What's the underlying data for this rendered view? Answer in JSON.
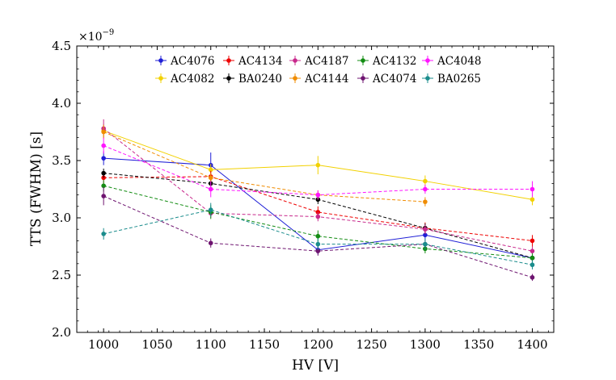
{
  "chart_data": {
    "type": "line",
    "title": "",
    "xlabel": "HV [V]",
    "ylabel": "TTS (FWHM) [s]",
    "y_multiplier": "×10",
    "y_multiplier_exp": "−9",
    "xlim": [
      975,
      1420
    ],
    "ylim": [
      2.0,
      4.5
    ],
    "x": [
      1000,
      1100,
      1200,
      1300,
      1400
    ],
    "xticks": [
      1000,
      1050,
      1100,
      1150,
      1200,
      1250,
      1300,
      1350,
      1400
    ],
    "xtick_labels": [
      "1000",
      "1050",
      "1100",
      "1150",
      "1200",
      "1250",
      "1300",
      "1350",
      "1400"
    ],
    "yticks": [
      2.0,
      2.5,
      3.0,
      3.5,
      4.0,
      4.5
    ],
    "ytick_labels": [
      "2.0",
      "2.5",
      "3.0",
      "3.5",
      "4.0",
      "4.5"
    ],
    "legend_position": "top-center",
    "series": [
      {
        "name": "AC4076",
        "color": "#1f1fd6",
        "values": [
          3.52,
          3.46,
          2.72,
          2.85,
          2.65
        ],
        "errors": [
          0.06,
          0.11,
          0.04,
          0.04,
          0.04
        ],
        "dashed": false
      },
      {
        "name": "AC4082",
        "color": "#f2d100",
        "values": [
          3.76,
          3.42,
          3.46,
          3.32,
          3.16
        ],
        "errors": [
          0.06,
          0.05,
          0.08,
          0.05,
          0.05
        ],
        "dashed": false
      },
      {
        "name": "AC4134",
        "color": "#ee0000",
        "values": [
          3.35,
          3.36,
          3.05,
          2.91,
          2.8
        ],
        "errors": [
          0.05,
          0.05,
          0.05,
          0.05,
          0.05
        ],
        "dashed": true
      },
      {
        "name": "BA0240",
        "color": "#000000",
        "values": [
          3.39,
          3.3,
          3.16,
          2.91,
          2.65
        ],
        "errors": [
          0.04,
          0.04,
          0.04,
          0.04,
          0.04
        ],
        "dashed": true
      },
      {
        "name": "AC4187",
        "color": "#c8288c",
        "values": [
          3.78,
          3.04,
          3.01,
          2.9,
          2.71
        ],
        "errors": [
          0.08,
          0.04,
          0.04,
          0.04,
          0.04
        ],
        "dashed": true
      },
      {
        "name": "AC4144",
        "color": "#f08c00",
        "values": [
          3.75,
          3.35,
          3.2,
          3.14,
          null
        ],
        "errors": [
          0.06,
          0.04,
          0.04,
          0.04,
          null
        ],
        "dashed": true
      },
      {
        "name": "AC4132",
        "color": "#128c12",
        "values": [
          3.28,
          3.05,
          2.84,
          2.73,
          2.65
        ],
        "errors": [
          0.05,
          0.06,
          0.05,
          0.04,
          0.04
        ],
        "dashed": true
      },
      {
        "name": "AC4074",
        "color": "#6e1470",
        "values": [
          3.19,
          2.78,
          2.71,
          2.77,
          2.48
        ],
        "errors": [
          0.08,
          0.04,
          0.04,
          0.04,
          0.03
        ],
        "dashed": true
      },
      {
        "name": "AC4048",
        "color": "#ff14ff",
        "values": [
          3.63,
          3.25,
          3.2,
          3.25,
          3.25
        ],
        "errors": [
          0.07,
          0.07,
          0.04,
          0.04,
          0.07
        ],
        "dashed": true
      },
      {
        "name": "BA0265",
        "color": "#1a8c8c",
        "values": [
          2.86,
          3.07,
          2.77,
          2.77,
          2.59
        ],
        "errors": [
          0.05,
          0.06,
          0.05,
          0.05,
          0.04
        ],
        "dashed": true
      }
    ]
  }
}
